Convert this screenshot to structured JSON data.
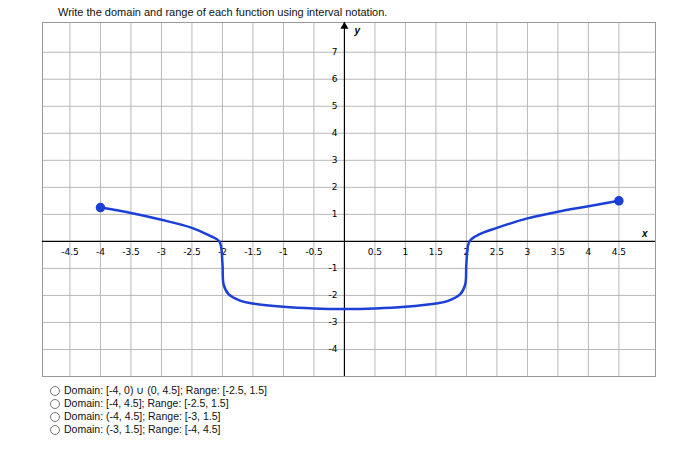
{
  "question": "Write the domain and range of each function using interval notation.",
  "chart_data": {
    "type": "line",
    "x_label": "x",
    "y_label": "y",
    "xlim": [
      -4.95,
      5.1
    ],
    "ylim": [
      -5,
      8.1
    ],
    "xticks": [
      -4.5,
      -4,
      -3.5,
      -3,
      -2.5,
      -2,
      -1.5,
      -1,
      -0.5,
      0.5,
      1,
      1.5,
      2,
      2.5,
      3,
      3.5,
      4,
      4.5
    ],
    "yticks": [
      -4,
      -3,
      -2,
      -1,
      1,
      2,
      3,
      4,
      5,
      6,
      7
    ],
    "grid": true,
    "color": "#1c3fd8",
    "marker": "endpoints",
    "x": [
      -4,
      -3.5,
      -3,
      -2.5,
      -2.2,
      -2.05,
      -2,
      -1.98,
      -1.9,
      -1.7,
      -1.5,
      -1,
      -0.5,
      0,
      0.5,
      1,
      1.5,
      1.7,
      1.9,
      1.98,
      2,
      2.05,
      2.2,
      2.5,
      3,
      3.5,
      4,
      4.5
    ],
    "values": [
      1.25,
      1.05,
      0.8,
      0.5,
      0.2,
      0,
      -0.8,
      -1.6,
      -1.95,
      -2.2,
      -2.3,
      -2.42,
      -2.48,
      -2.5,
      -2.48,
      -2.42,
      -2.3,
      -2.2,
      -1.95,
      -1.6,
      -0.8,
      0,
      0.25,
      0.5,
      0.85,
      1.1,
      1.3,
      1.5
    ]
  },
  "options": [
    "Domain: [-4, 0) ∪ (0, 4.5]; Range: [-2.5, 1.5]",
    "Domain: [-4, 4.5]; Range: [-2.5, 1.5]",
    "Domain: (-4, 4.5]; Range: [-3, 1.5]",
    "Domain: (-3, 1.5]; Range: [-4, 4.5]"
  ]
}
